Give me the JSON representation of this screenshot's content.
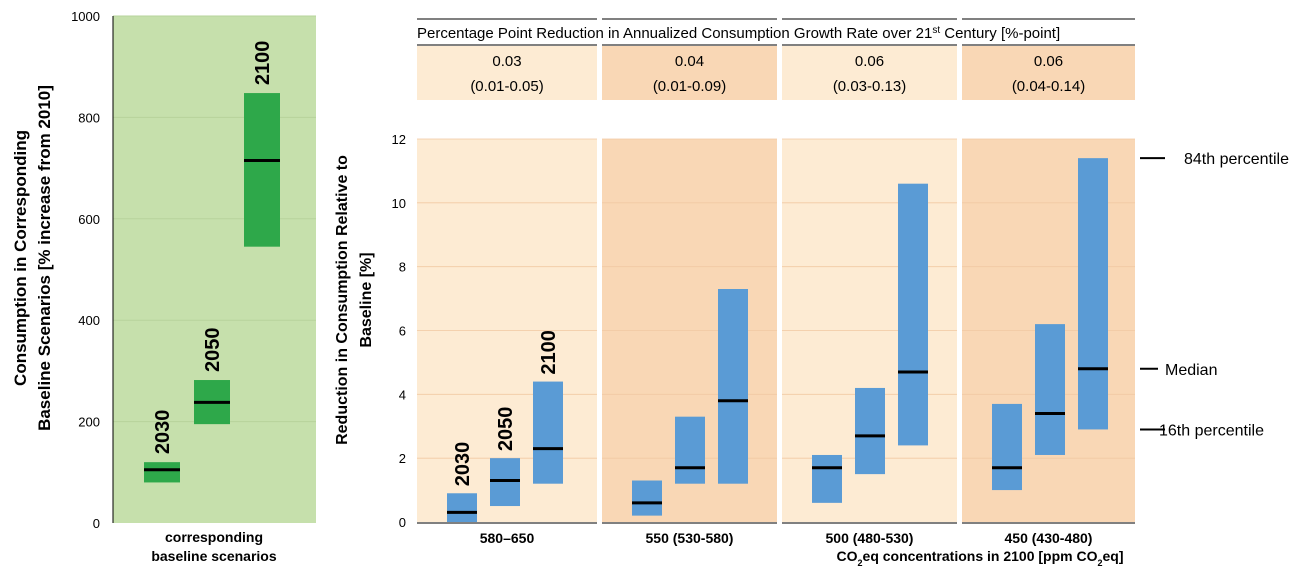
{
  "colors": {
    "left_panel_bg": "#c6e0ac",
    "left_bar": "#2ea84a",
    "median_line": "#000000",
    "right_bar": "#5a9bd5",
    "panel_light": "#fdebd3",
    "panel_dark": "#f9d7b5",
    "header_light": "#fdebd3",
    "header_dark": "#f9d7b5",
    "gridline": "#d9d9d9"
  },
  "left_chart": {
    "ylabel_line1": "Consumption in Corresponding",
    "ylabel_line2": "Baseline Scenarios [% increase from 2010]",
    "xlabel_line1": "corresponding",
    "xlabel_line2": "baseline scenarios"
  },
  "right_chart": {
    "ylabel_line1": "Reduction in Consumption Relative to",
    "ylabel_line2": "Baseline [%]",
    "header_title": "Percentage Point Reduction in Annualized Consumption Growth Rate over 21",
    "header_title_sup": "st",
    "header_title_end": " Century [%-point]",
    "x_title_pre": "CO",
    "x_title_sub1": "2",
    "x_title_mid": "eq concentrations in 2100 [ppm CO",
    "x_title_sub2": "2",
    "x_title_end": "eq]",
    "annotations": {
      "p84": "84th percentile",
      "median": "Median",
      "p16": "16th percentile"
    }
  },
  "chart_data": [
    {
      "type": "bar",
      "title": "",
      "ylabel": "Consumption in Corresponding Baseline Scenarios [% increase from 2010]",
      "xlabel": "corresponding baseline scenarios",
      "ylim": [
        0,
        1000
      ],
      "yticks": [
        0,
        200,
        400,
        600,
        800,
        1000
      ],
      "grid": true,
      "series": [
        {
          "label": "2030",
          "low": 80,
          "median": 105,
          "high": 120
        },
        {
          "label": "2050",
          "low": 195,
          "median": 238,
          "high": 282
        },
        {
          "label": "2100",
          "low": 545,
          "median": 715,
          "high": 848
        }
      ]
    },
    {
      "type": "bar",
      "title": "",
      "ylabel": "Reduction in Consumption Relative to Baseline [%]",
      "xlabel": "CO2eq concentrations in 2100 [ppm CO2eq]",
      "ylim": [
        0,
        12
      ],
      "yticks": [
        0,
        2,
        4,
        6,
        8,
        10,
        12
      ],
      "grid": true,
      "year_labels": [
        "2030",
        "2050",
        "2100"
      ],
      "groups": [
        {
          "category": "580–650",
          "growth_rate": "0.03",
          "growth_range": "(0.01-0.05)",
          "bars": [
            {
              "year": "2030",
              "low": 0.0,
              "median": 0.3,
              "high": 0.9
            },
            {
              "year": "2050",
              "low": 0.5,
              "median": 1.3,
              "high": 2.0
            },
            {
              "year": "2100",
              "low": 1.2,
              "median": 2.3,
              "high": 4.4
            }
          ]
        },
        {
          "category": "550 (530-580)",
          "growth_rate": "0.04",
          "growth_range": "(0.01-0.09)",
          "bars": [
            {
              "year": "2030",
              "low": 0.2,
              "median": 0.6,
              "high": 1.3
            },
            {
              "year": "2050",
              "low": 1.2,
              "median": 1.7,
              "high": 3.3
            },
            {
              "year": "2100",
              "low": 1.2,
              "median": 3.8,
              "high": 7.3
            }
          ]
        },
        {
          "category": "500 (480-530)",
          "growth_rate": "0.06",
          "growth_range": "(0.03-0.13)",
          "bars": [
            {
              "year": "2030",
              "low": 0.6,
              "median": 1.7,
              "high": 2.1
            },
            {
              "year": "2050",
              "low": 1.5,
              "median": 2.7,
              "high": 4.2
            },
            {
              "year": "2100",
              "low": 2.4,
              "median": 4.7,
              "high": 10.6
            }
          ]
        },
        {
          "category": "450 (430-480)",
          "growth_rate": "0.06",
          "growth_range": "(0.04-0.14)",
          "bars": [
            {
              "year": "2030",
              "low": 1.0,
              "median": 1.7,
              "high": 3.7
            },
            {
              "year": "2050",
              "low": 2.1,
              "median": 3.4,
              "high": 6.2
            },
            {
              "year": "2100",
              "low": 2.9,
              "median": 4.8,
              "high": 11.4
            }
          ]
        }
      ]
    }
  ]
}
